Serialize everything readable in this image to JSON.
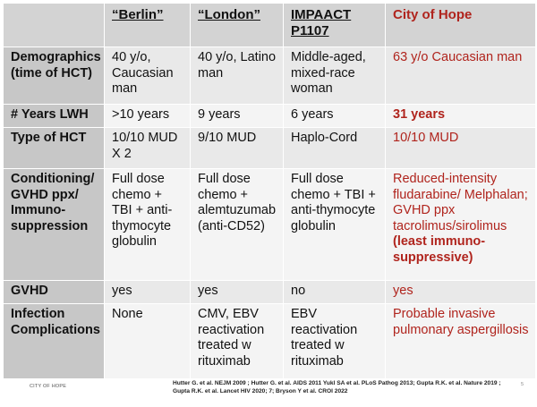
{
  "table": {
    "headers": [
      "",
      "“Berlin”",
      "“London”",
      "IMPAACT P1107",
      "City of Hope"
    ],
    "rows": [
      {
        "label": "Demographics (time of HCT)",
        "cells": [
          "40 y/o, Caucasian man",
          "40 y/o, Latino man",
          "Middle-aged, mixed-race woman",
          "63 y/o Caucasian man"
        ]
      },
      {
        "label": "# Years LWH",
        "cells": [
          ">10 years",
          "9 years",
          "6 years",
          "31 years"
        ]
      },
      {
        "label": "Type of HCT",
        "cells": [
          "10/10 MUD X 2",
          "9/10 MUD",
          "Haplo-Cord",
          "10/10 MUD"
        ]
      },
      {
        "label": "Conditioning/ GVHD ppx/ Immuno-suppression",
        "cells": [
          "Full dose chemo + TBI + anti-thymocyte globulin",
          "Full dose chemo + alemtuzumab (anti-CD52)",
          "Full dose chemo + TBI + anti-thymocyte globulin",
          "Reduced-intensity fludarabine/ Melphalan; GVHD ppx tacrolimus/sirolimus"
        ],
        "extra": "(least immuno-suppressive)"
      },
      {
        "label": "GVHD",
        "cells": [
          "yes",
          "yes",
          "no",
          "yes"
        ]
      },
      {
        "label": "Infection Complications",
        "cells": [
          "None",
          "CMV, EBV reactivation treated w rituximab",
          "EBV reactivation treated w rituximab",
          "Probable invasive pulmonary aspergillosis"
        ]
      }
    ]
  },
  "footer": {
    "institution": "CITY OF HOPE",
    "references": "Hutter G. et al. NEJM 2009 ; Hutter G. et al. AIDS 2011 Yukl SA et al. PLoS Pathog 2013; Gupta R.K. et al. Nature 2019 ; Gupta R.K. et al. Lancet HIV 2020; 7; Bryson Y et al.  CROI 2022",
    "page_number": "5"
  },
  "colors": {
    "accent_red": "#b0241d",
    "header_gray": "#d3d3d3",
    "rowhead_gray": "#c7c7c7"
  }
}
